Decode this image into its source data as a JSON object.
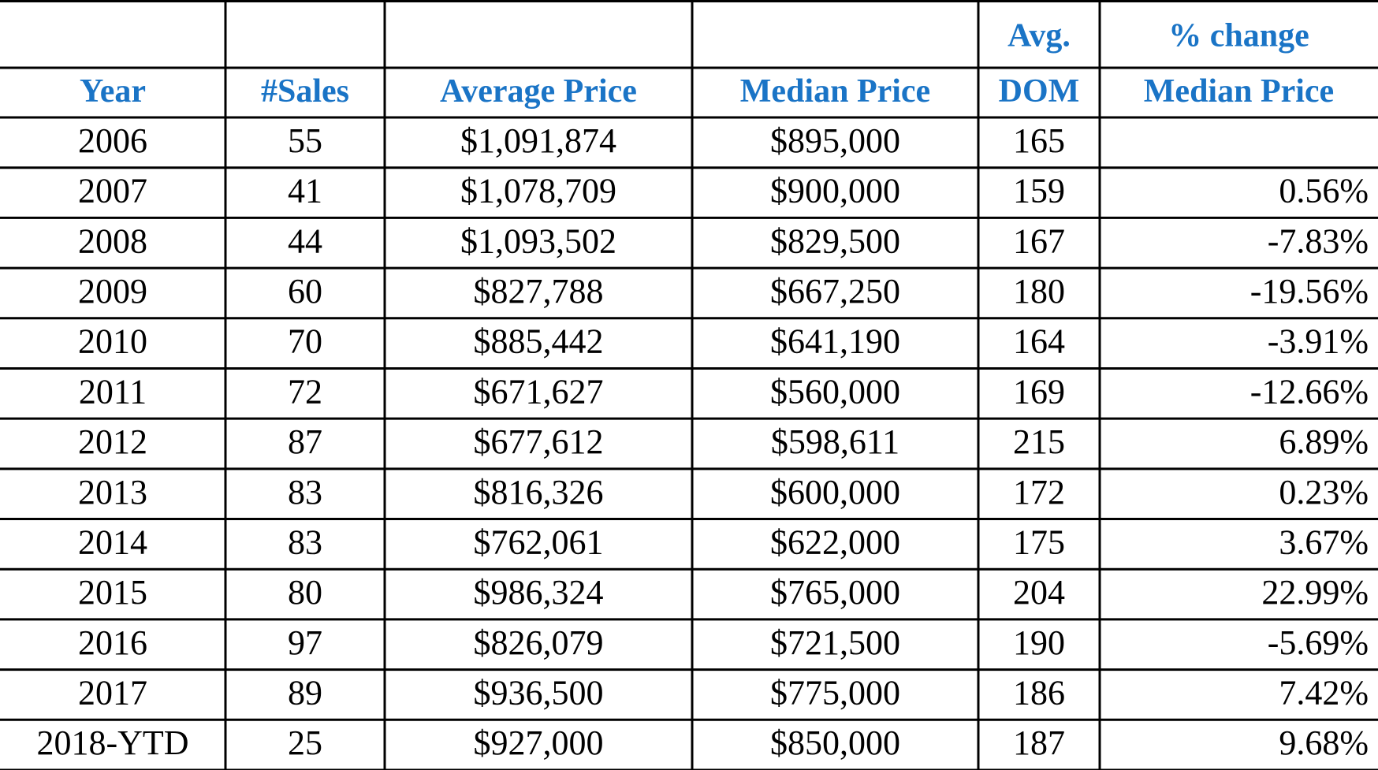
{
  "table": {
    "columns": [
      {
        "label": "Year"
      },
      {
        "label": "#Sales"
      },
      {
        "label": "Average Price"
      },
      {
        "label": "Median Price"
      },
      {
        "above": "Avg.",
        "label": "DOM"
      },
      {
        "above": "% change",
        "label": "Median Price"
      }
    ],
    "rows": [
      [
        "2006",
        "55",
        "$1,091,874",
        "$895,000",
        "165",
        null
      ],
      [
        "2007",
        "41",
        "$1,078,709",
        "$900,000",
        "159",
        "0.56%"
      ],
      [
        "2008",
        "44",
        "$1,093,502",
        "$829,500",
        "167",
        "-7.83%"
      ],
      [
        "2009",
        "60",
        "$827,788",
        "$667,250",
        "180",
        "-19.56%"
      ],
      [
        "2010",
        "70",
        "$885,442",
        "$641,190",
        "164",
        "-3.91%"
      ],
      [
        "2011",
        "72",
        "$671,627",
        "$560,000",
        "169",
        "-12.66%"
      ],
      [
        "2012",
        "87",
        "$677,612",
        "$598,611",
        "215",
        "6.89%"
      ],
      [
        "2013",
        "83",
        "$816,326",
        "$600,000",
        "172",
        "0.23%"
      ],
      [
        "2014",
        "83",
        "$762,061",
        "$622,000",
        "175",
        "3.67%"
      ],
      [
        "2015",
        "80",
        "$986,324",
        "$765,000",
        "204",
        "22.99%"
      ],
      [
        "2016",
        "97",
        "$826,079",
        "$721,500",
        "190",
        "-5.69%"
      ],
      [
        "2017",
        "89",
        "$936,500",
        "$775,000",
        "186",
        "7.42%"
      ],
      [
        "2018-YTD",
        "25",
        "$927,000",
        "$850,000",
        "187",
        "9.68%"
      ]
    ]
  }
}
